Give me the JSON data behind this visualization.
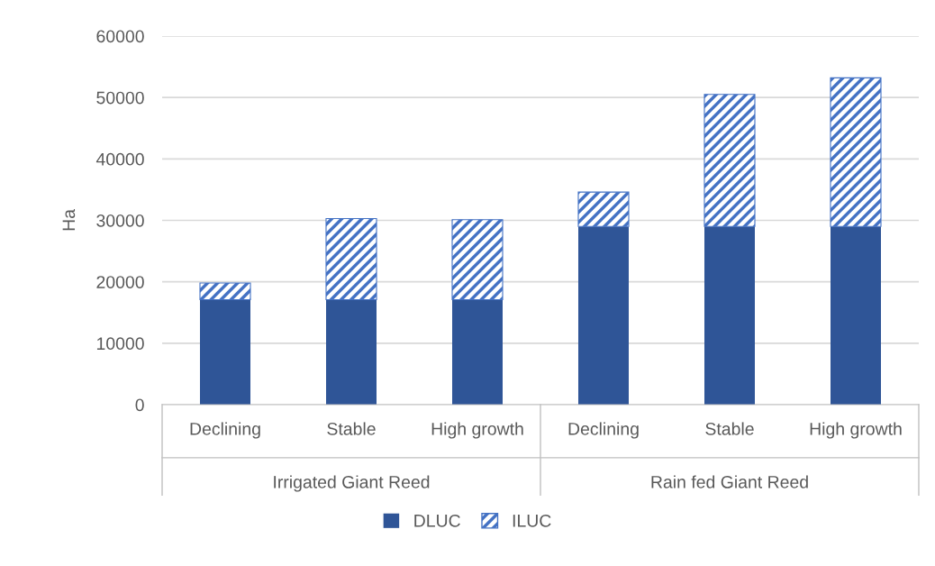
{
  "chart_data": {
    "type": "bar",
    "stacked": true,
    "ylabel": "Ha",
    "categories": [
      "Declining",
      "Stable",
      "High growth",
      "Declining",
      "Stable",
      "High growth"
    ],
    "annotations": [
      "Irrigated Giant Reed",
      "Rain fed Giant Reed"
    ],
    "series": [
      {
        "name": "DLUC",
        "color": "#2f5597",
        "values": [
          17100,
          17100,
          17100,
          29000,
          29000,
          29000
        ]
      },
      {
        "name": "ILUC",
        "color": "#4472c4",
        "values": [
          2700,
          13200,
          13000,
          5600,
          21500,
          24200
        ]
      }
    ],
    "ylim": [
      0,
      60000
    ],
    "yticks": [
      0,
      10000,
      20000,
      30000,
      40000,
      50000,
      60000
    ],
    "grid": "y",
    "legend": "bottom"
  }
}
